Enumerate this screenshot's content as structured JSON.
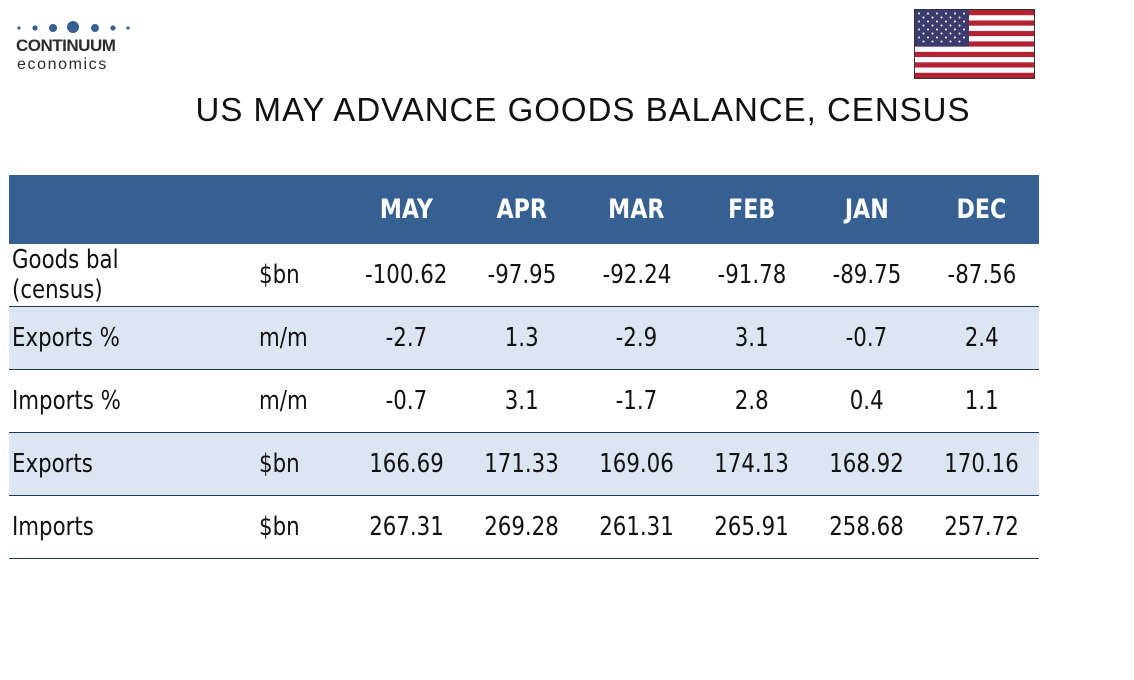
{
  "logo": {
    "name": "CONTINUUM",
    "sub": "economics"
  },
  "title": "US MAY ADVANCE GOODS BALANCE, CENSUS",
  "colors": {
    "header_bg": "#376092",
    "shaded_row": "#dce6f2",
    "logo_dots": "#376092"
  },
  "flag_icon": "us-flag-icon",
  "table": {
    "headers": [
      "",
      "",
      "MAY",
      "APR",
      "MAR",
      "FEB",
      "JAN",
      "DEC"
    ],
    "rows": [
      {
        "label": "Goods bal (census)",
        "unit": "$bn",
        "values": [
          "-100.62",
          "-97.95",
          "-92.24",
          "-91.78",
          "-89.75",
          "-87.56"
        ]
      },
      {
        "label": "Exports %",
        "unit": "m/m",
        "values": [
          "-2.7",
          "1.3",
          "-2.9",
          "3.1",
          "-0.7",
          "2.4"
        ]
      },
      {
        "label": "Imports %",
        "unit": "m/m",
        "values": [
          "-0.7",
          "3.1",
          "-1.7",
          "2.8",
          "0.4",
          "1.1"
        ]
      },
      {
        "label": "Exports",
        "unit": "$bn",
        "values": [
          "166.69",
          "171.33",
          "169.06",
          "174.13",
          "168.92",
          "170.16"
        ]
      },
      {
        "label": "Imports",
        "unit": "$bn",
        "values": [
          "267.31",
          "269.28",
          "261.31",
          "265.91",
          "258.68",
          "257.72"
        ]
      }
    ]
  }
}
